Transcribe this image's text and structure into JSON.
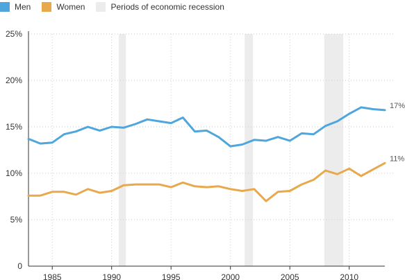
{
  "legend": {
    "men": "Men",
    "women": "Women",
    "recession": "Periods of economic recession"
  },
  "colors": {
    "men": "#4ea6dc",
    "women": "#e8a84c",
    "recession": "#ececec",
    "grid": "#cccccc",
    "axis": "#333333"
  },
  "chart_data": {
    "type": "line",
    "title": "",
    "xlabel": "",
    "ylabel": "",
    "xlim": [
      1983,
      2013
    ],
    "ylim": [
      0,
      25
    ],
    "x_ticks": [
      1985,
      1990,
      1995,
      2000,
      2005,
      2010
    ],
    "x_tick_labels": [
      "1985",
      "1990",
      "1995",
      "2000",
      "2005",
      "2010"
    ],
    "y_ticks": [
      0,
      5,
      10,
      15,
      20,
      25
    ],
    "y_tick_labels": [
      "0",
      "5%",
      "10%",
      "15%",
      "20%",
      "25%"
    ],
    "grid": true,
    "legend_position": "top-left",
    "x": [
      1983,
      1984,
      1985,
      1986,
      1987,
      1988,
      1989,
      1990,
      1991,
      1992,
      1993,
      1994,
      1995,
      1996,
      1997,
      1998,
      1999,
      2000,
      2001,
      2002,
      2003,
      2004,
      2005,
      2006,
      2007,
      2008,
      2009,
      2010,
      2011,
      2012,
      2013
    ],
    "series": [
      {
        "name": "Men",
        "values": [
          13.7,
          13.2,
          13.3,
          14.2,
          14.5,
          15.0,
          14.6,
          15.0,
          14.9,
          15.3,
          15.8,
          15.6,
          15.4,
          16.0,
          14.5,
          14.6,
          13.9,
          12.9,
          13.1,
          13.6,
          13.5,
          13.9,
          13.5,
          14.3,
          14.2,
          15.1,
          15.6,
          16.4,
          17.1,
          16.9,
          16.8
        ],
        "end_label": "17%"
      },
      {
        "name": "Women",
        "values": [
          7.6,
          7.6,
          8.0,
          8.0,
          7.7,
          8.3,
          7.9,
          8.1,
          8.7,
          8.8,
          8.8,
          8.8,
          8.5,
          9.0,
          8.6,
          8.5,
          8.6,
          8.3,
          8.1,
          8.3,
          7.0,
          8.0,
          8.1,
          8.8,
          9.3,
          10.3,
          9.9,
          10.5,
          9.7,
          10.4,
          11.1
        ],
        "end_label": "11%"
      }
    ],
    "recession_periods": [
      {
        "start": 1990.6,
        "end": 1991.2
      },
      {
        "start": 2001.2,
        "end": 2001.9
      },
      {
        "start": 2007.9,
        "end": 2009.5
      }
    ]
  }
}
